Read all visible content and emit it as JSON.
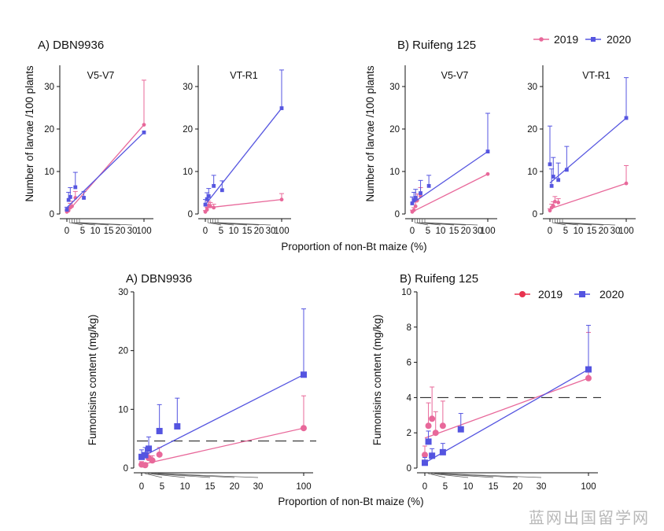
{
  "figure": {
    "colors": {
      "s2019": "#e8689a",
      "s2020": "#5656e0",
      "s2019_fum": "#e8689a",
      "s2020_fum": "#5454e0",
      "marker2019_legend_bottom": "#e8334f",
      "axis": "#111111"
    },
    "top_panel_A_title": "A)  DBN9936",
    "top_panel_B_title": "B)  Ruifeng 125",
    "top_ylabel": "Number of larvae /100 plants",
    "top_xlabel": "Proportion of non-Bt maize (%)",
    "bottom_xlabel": "Proportion of non-Bt maize (%)",
    "bottom_ylabel": "Fumonisins content (mg/kg)",
    "bottom_panel_A_title": "A) DBN9936",
    "bottom_panel_B_title": "B) Ruifeng 125",
    "legend_top": [
      {
        "label": "2019"
      },
      {
        "label": "2020"
      }
    ],
    "legend_bottom": [
      {
        "label": "2019"
      },
      {
        "label": "2020"
      }
    ],
    "watermark": "蓝网出国留学网"
  },
  "chart_data": [
    {
      "id": "larvae-dbn-v5v7",
      "type": "scatter",
      "title": "V5-V7",
      "ylim": [
        0,
        35
      ],
      "yticks": [
        0,
        10,
        20,
        30
      ],
      "xtick_labels": [
        "0",
        "5",
        "10",
        "15",
        "20",
        "30",
        "100"
      ],
      "series": [
        {
          "name": "2019",
          "points": [
            {
              "x": 0,
              "y": 0.5,
              "err": 0.4
            },
            {
              "x": 1,
              "y": 0.8,
              "err": 0.6
            },
            {
              "x": 2,
              "y": 1.5,
              "err": 1.0
            },
            {
              "x": 3,
              "y": 1.8,
              "err": 1.2
            },
            {
              "x": 5,
              "y": 3.8,
              "err": 1.5
            },
            {
              "x": 100,
              "y": 21.0,
              "err": 10.5
            }
          ],
          "fit": [
            0,
            0.3,
            100,
            21.0
          ]
        },
        {
          "name": "2020",
          "points": [
            {
              "x": 0,
              "y": 1.0,
              "err": 0.6
            },
            {
              "x": 1,
              "y": 3.3,
              "err": 1.8
            },
            {
              "x": 2,
              "y": 4.0,
              "err": 2.2
            },
            {
              "x": 5,
              "y": 6.3,
              "err": 3.5
            },
            {
              "x": 10,
              "y": 3.8,
              "err": 1.5
            },
            {
              "x": 100,
              "y": 19.2,
              "err": 0
            }
          ],
          "fit": [
            0,
            1.5,
            100,
            19.2
          ]
        }
      ]
    },
    {
      "id": "larvae-dbn-vtr1",
      "type": "scatter",
      "title": "VT-R1",
      "ylim": [
        0,
        35
      ],
      "yticks": [
        0,
        10,
        20,
        30
      ],
      "xtick_labels": [
        "0",
        "5",
        "10",
        "15",
        "20",
        "30",
        "100"
      ],
      "series": [
        {
          "name": "2019",
          "points": [
            {
              "x": 0,
              "y": 0.5,
              "err": 0.3
            },
            {
              "x": 1,
              "y": 1.0,
              "err": 0.6
            },
            {
              "x": 2,
              "y": 2.0,
              "err": 1.0
            },
            {
              "x": 3,
              "y": 1.8,
              "err": 0.9
            },
            {
              "x": 5,
              "y": 1.5,
              "err": 0.8
            },
            {
              "x": 100,
              "y": 3.4,
              "err": 1.4
            }
          ],
          "fit": [
            0,
            1.4,
            100,
            3.4
          ]
        },
        {
          "name": "2020",
          "points": [
            {
              "x": 0,
              "y": 2.2,
              "err": 1.2
            },
            {
              "x": 1,
              "y": 3.5,
              "err": 1.5
            },
            {
              "x": 2,
              "y": 4.2,
              "err": 1.8
            },
            {
              "x": 5,
              "y": 6.6,
              "err": 2.5
            },
            {
              "x": 10,
              "y": 5.6,
              "err": 2.2
            },
            {
              "x": 100,
              "y": 24.9,
              "err": 9.0
            }
          ],
          "fit": [
            0,
            2.2,
            100,
            24.9
          ]
        }
      ]
    },
    {
      "id": "larvae-rf-v5v7",
      "type": "scatter",
      "title": "V5-V7",
      "ylim": [
        0,
        35
      ],
      "yticks": [
        0,
        10,
        20,
        30
      ],
      "xtick_labels": [
        "0",
        "5",
        "10",
        "15",
        "20",
        "30",
        "100"
      ],
      "series": [
        {
          "name": "2019",
          "points": [
            {
              "x": 0,
              "y": 0.5,
              "err": 0.4
            },
            {
              "x": 1,
              "y": 0.9,
              "err": 0.6
            },
            {
              "x": 2,
              "y": 1.8,
              "err": 1.0
            },
            {
              "x": 3,
              "y": 3.2,
              "err": 1.5
            },
            {
              "x": 5,
              "y": 4.2,
              "err": 2.0
            },
            {
              "x": 100,
              "y": 9.4,
              "err": 0
            }
          ],
          "fit": [
            0,
            0.5,
            100,
            9.4
          ]
        },
        {
          "name": "2020",
          "points": [
            {
              "x": 0,
              "y": 2.5,
              "err": 1.5
            },
            {
              "x": 1,
              "y": 3.3,
              "err": 1.8
            },
            {
              "x": 2,
              "y": 3.8,
              "err": 2.0
            },
            {
              "x": 5,
              "y": 4.9,
              "err": 3.0
            },
            {
              "x": 10,
              "y": 6.6,
              "err": 2.5
            },
            {
              "x": 100,
              "y": 14.7,
              "err": 9.0
            }
          ],
          "fit": [
            0,
            2.5,
            100,
            14.7
          ]
        }
      ]
    },
    {
      "id": "larvae-rf-vtr1",
      "type": "scatter",
      "title": "VT-R1",
      "ylim": [
        0,
        35
      ],
      "yticks": [
        0,
        10,
        20,
        30
      ],
      "xtick_labels": [
        "0",
        "5",
        "10",
        "15",
        "20",
        "30",
        "100"
      ],
      "series": [
        {
          "name": "2019",
          "points": [
            {
              "x": 0,
              "y": 0.8,
              "err": 0.4
            },
            {
              "x": 1,
              "y": 1.5,
              "err": 0.8
            },
            {
              "x": 2,
              "y": 1.9,
              "err": 1.0
            },
            {
              "x": 3,
              "y": 2.9,
              "err": 1.2
            },
            {
              "x": 5,
              "y": 2.7,
              "err": 0.9
            },
            {
              "x": 100,
              "y": 7.2,
              "err": 4.2
            }
          ],
          "fit": [
            0,
            1.2,
            100,
            7.2
          ]
        },
        {
          "name": "2020",
          "points": [
            {
              "x": 0,
              "y": 11.7,
              "err": 9.0
            },
            {
              "x": 1,
              "y": 6.6,
              "err": 4.0
            },
            {
              "x": 2,
              "y": 8.8,
              "err": 4.5
            },
            {
              "x": 5,
              "y": 8.0,
              "err": 4.0
            },
            {
              "x": 10,
              "y": 10.4,
              "err": 5.5
            },
            {
              "x": 100,
              "y": 22.6,
              "err": 9.5
            }
          ],
          "fit": [
            0,
            7.3,
            100,
            22.6
          ]
        }
      ]
    },
    {
      "id": "fumonisins-dbn",
      "type": "scatter",
      "ylim": [
        0,
        30
      ],
      "yticks": [
        0,
        10,
        20,
        30
      ],
      "threshold": 4.6,
      "xtick_labels": [
        "0",
        "5",
        "10",
        "15",
        "20",
        "30",
        "100"
      ],
      "series": [
        {
          "name": "2019",
          "points": [
            {
              "x": 0,
              "y": 0.6,
              "err": 0.5
            },
            {
              "x": 1,
              "y": 0.5,
              "err": 0.4
            },
            {
              "x": 2,
              "y": 1.7,
              "err": 0.9
            },
            {
              "x": 3,
              "y": 1.3,
              "err": 0.8
            },
            {
              "x": 5,
              "y": 2.3,
              "err": 1.2
            },
            {
              "x": 100,
              "y": 6.8,
              "err": 5.5
            }
          ],
          "fit": [
            0,
            0.6,
            100,
            6.8
          ]
        },
        {
          "name": "2020",
          "points": [
            {
              "x": 0,
              "y": 1.9,
              "err": 1.2
            },
            {
              "x": 1,
              "y": 2.2,
              "err": 1.3
            },
            {
              "x": 2,
              "y": 3.3,
              "err": 2.0
            },
            {
              "x": 5,
              "y": 6.3,
              "err": 4.5
            },
            {
              "x": 10,
              "y": 7.1,
              "err": 4.8
            },
            {
              "x": 100,
              "y": 15.9,
              "err": 11.2
            }
          ],
          "fit": [
            0,
            1.9,
            100,
            15.9
          ]
        }
      ]
    },
    {
      "id": "fumonisins-rf",
      "type": "scatter",
      "ylim": [
        0,
        10
      ],
      "yticks": [
        0,
        2,
        4,
        6,
        8,
        10
      ],
      "threshold": 4.0,
      "xtick_labels": [
        "0",
        "5",
        "10",
        "15",
        "20",
        "30",
        "100"
      ],
      "series": [
        {
          "name": "2019",
          "points": [
            {
              "x": 0,
              "y": 0.75,
              "err": 0.5
            },
            {
              "x": 1,
              "y": 2.4,
              "err": 1.3
            },
            {
              "x": 2,
              "y": 2.8,
              "err": 1.8
            },
            {
              "x": 3,
              "y": 2.0,
              "err": 1.2
            },
            {
              "x": 5,
              "y": 2.4,
              "err": 1.4
            },
            {
              "x": 100,
              "y": 5.1,
              "err": 2.6
            }
          ],
          "fit": [
            0,
            1.7,
            100,
            5.1
          ]
        },
        {
          "name": "2020",
          "points": [
            {
              "x": 0,
              "y": 0.3,
              "err": 0.3
            },
            {
              "x": 1,
              "y": 1.5,
              "err": 0.6
            },
            {
              "x": 2,
              "y": 0.7,
              "err": 0.4
            },
            {
              "x": 5,
              "y": 0.9,
              "err": 0.5
            },
            {
              "x": 10,
              "y": 2.2,
              "err": 0.9
            },
            {
              "x": 100,
              "y": 5.6,
              "err": 2.5
            }
          ],
          "fit": [
            0,
            0.3,
            100,
            5.6
          ]
        }
      ]
    }
  ]
}
